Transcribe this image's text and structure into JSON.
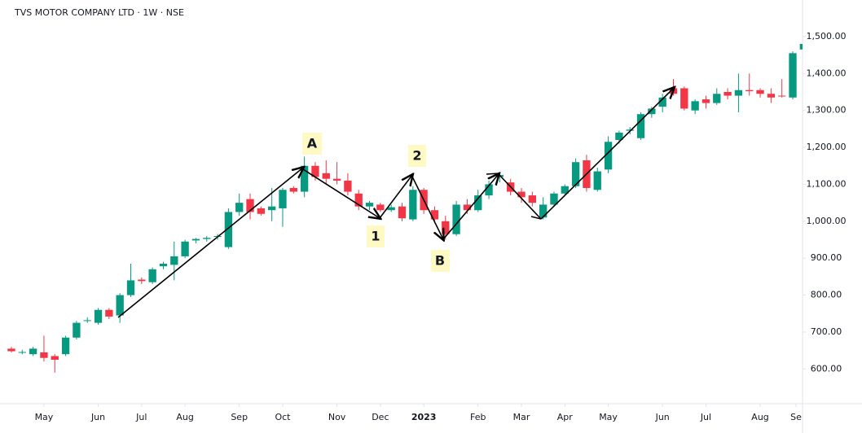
{
  "chart_data": {
    "type": "candlestick",
    "title": "TVS MOTOR COMPANY LTD · 1W · NSE",
    "up_color": "#089981",
    "down_color": "#f23645",
    "open": [
      655,
      645,
      640,
      645,
      635,
      640,
      685,
      730,
      725,
      760,
      745,
      800,
      842,
      835,
      878,
      882,
      905,
      948,
      952,
      958,
      930,
      1025,
      1060,
      1035,
      1030,
      1035,
      1090,
      1080,
      1150,
      1130,
      1115,
      1110,
      1075,
      1040,
      1045,
      1030,
      1040,
      1005,
      1085,
      1030,
      1000,
      965,
      1045,
      1030,
      1070,
      1120,
      1105,
      1080,
      1070,
      1010,
      1045,
      1075,
      1095,
      1165,
      1085,
      1140,
      1220,
      1245,
      1225,
      1290,
      1310,
      1360,
      1360,
      1300,
      1330,
      1320,
      1350,
      1340,
      1355,
      1355,
      1345,
      1340,
      1335,
      1465
    ],
    "high": [
      660,
      652,
      660,
      690,
      640,
      690,
      730,
      740,
      765,
      765,
      805,
      885,
      848,
      875,
      890,
      945,
      950,
      955,
      960,
      965,
      1035,
      1075,
      1075,
      1040,
      1090,
      1090,
      1095,
      1175,
      1160,
      1165,
      1160,
      1130,
      1085,
      1055,
      1050,
      1045,
      1050,
      1095,
      1090,
      1040,
      1015,
      1055,
      1060,
      1085,
      1110,
      1130,
      1115,
      1090,
      1080,
      1065,
      1080,
      1100,
      1170,
      1180,
      1145,
      1230,
      1245,
      1255,
      1295,
      1310,
      1345,
      1385,
      1365,
      1330,
      1340,
      1360,
      1360,
      1400,
      1400,
      1360,
      1360,
      1385,
      1460,
      1485
    ],
    "low": [
      645,
      640,
      635,
      620,
      590,
      635,
      680,
      725,
      720,
      735,
      725,
      795,
      830,
      830,
      870,
      840,
      900,
      940,
      945,
      950,
      925,
      1015,
      1005,
      1015,
      1000,
      985,
      1075,
      1065,
      1110,
      1100,
      1100,
      1070,
      1030,
      1030,
      1025,
      1025,
      1000,
      1000,
      1020,
      995,
      950,
      960,
      1020,
      1025,
      1060,
      1105,
      1070,
      1050,
      1040,
      1005,
      1040,
      1070,
      1090,
      1080,
      1080,
      1130,
      1210,
      1235,
      1220,
      1280,
      1295,
      1340,
      1300,
      1290,
      1305,
      1315,
      1330,
      1295,
      1340,
      1335,
      1320,
      1335,
      1330,
      1460
    ],
    "close": [
      648,
      646,
      655,
      630,
      625,
      685,
      725,
      732,
      760,
      742,
      800,
      840,
      838,
      870,
      885,
      905,
      945,
      952,
      955,
      960,
      1025,
      1050,
      1025,
      1020,
      1040,
      1085,
      1080,
      1150,
      1120,
      1115,
      1110,
      1080,
      1040,
      1050,
      1030,
      1038,
      1008,
      1085,
      1030,
      1005,
      965,
      1045,
      1030,
      1070,
      1100,
      1125,
      1080,
      1065,
      1050,
      1045,
      1075,
      1095,
      1160,
      1090,
      1135,
      1215,
      1240,
      1248,
      1290,
      1305,
      1335,
      1345,
      1305,
      1325,
      1320,
      1345,
      1340,
      1355,
      1352,
      1345,
      1335,
      1338,
      1455,
      1480
    ],
    "xlim": [
      -1.05,
      72.9
    ],
    "xticks": [
      {
        "value": 3,
        "label": "May"
      },
      {
        "value": 8,
        "label": "Jun"
      },
      {
        "value": 12,
        "label": "Jul"
      },
      {
        "value": 16,
        "label": "Aug"
      },
      {
        "value": 21,
        "label": "Sep"
      },
      {
        "value": 25,
        "label": "Oct"
      },
      {
        "value": 30,
        "label": "Nov"
      },
      {
        "value": 34,
        "label": "Dec"
      },
      {
        "value": 38,
        "label": "2023"
      },
      {
        "value": 43,
        "label": "Feb"
      },
      {
        "value": 47,
        "label": "Mar"
      },
      {
        "value": 51,
        "label": "Apr"
      },
      {
        "value": 55,
        "label": "May"
      },
      {
        "value": 60,
        "label": "Jun"
      },
      {
        "value": 64,
        "label": "Jul"
      },
      {
        "value": 69,
        "label": "Aug"
      },
      {
        "value": 72.3,
        "label": "Se"
      }
    ],
    "ylim": [
      506,
      1599
    ],
    "yticks": [
      {
        "value": 600,
        "label": "600.00"
      },
      {
        "value": 700,
        "label": "700.00"
      },
      {
        "value": 800,
        "label": "800.00"
      },
      {
        "value": 900,
        "label": "900.00"
      },
      {
        "value": 1000,
        "label": "1,000.00"
      },
      {
        "value": 1100,
        "label": "1,100.00"
      },
      {
        "value": 1200,
        "label": "1,200.00"
      },
      {
        "value": 1300,
        "label": "1,300.00"
      },
      {
        "value": 1400,
        "label": "1,400.00"
      },
      {
        "value": 1500,
        "label": "1,500.00"
      }
    ],
    "annotations": [
      "A",
      "1",
      "2",
      "B"
    ]
  }
}
